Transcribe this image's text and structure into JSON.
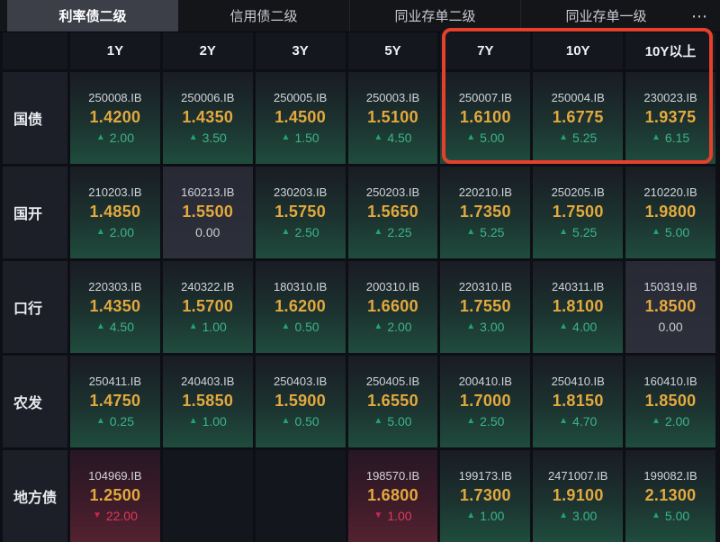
{
  "tab_bar": {
    "tabs": [
      {
        "label": "利率债二级",
        "active": true
      },
      {
        "label": "信用债二级",
        "active": false
      },
      {
        "label": "同业存单二级",
        "active": false
      },
      {
        "label": "同业存单一级",
        "active": false
      }
    ],
    "more_icon_glyph": "⋯"
  },
  "table": {
    "columns": [
      "1Y",
      "2Y",
      "3Y",
      "5Y",
      "7Y",
      "10Y",
      "10Y以上"
    ],
    "rows": [
      {
        "label": "国债",
        "cells": [
          {
            "code": "250008.IB",
            "rate": "1.4200",
            "change": "2.00",
            "dir": "up"
          },
          {
            "code": "250006.IB",
            "rate": "1.4350",
            "change": "3.50",
            "dir": "up"
          },
          {
            "code": "250005.IB",
            "rate": "1.4500",
            "change": "1.50",
            "dir": "up"
          },
          {
            "code": "250003.IB",
            "rate": "1.5100",
            "change": "4.50",
            "dir": "up"
          },
          {
            "code": "250007.IB",
            "rate": "1.6100",
            "change": "5.00",
            "dir": "up"
          },
          {
            "code": "250004.IB",
            "rate": "1.6775",
            "change": "5.25",
            "dir": "up"
          },
          {
            "code": "230023.IB",
            "rate": "1.9375",
            "change": "6.15",
            "dir": "up"
          }
        ]
      },
      {
        "label": "国开",
        "cells": [
          {
            "code": "210203.IB",
            "rate": "1.4850",
            "change": "2.00",
            "dir": "up"
          },
          {
            "code": "160213.IB",
            "rate": "1.5500",
            "change": "0.00",
            "dir": "flat"
          },
          {
            "code": "230203.IB",
            "rate": "1.5750",
            "change": "2.50",
            "dir": "up"
          },
          {
            "code": "250203.IB",
            "rate": "1.5650",
            "change": "2.25",
            "dir": "up"
          },
          {
            "code": "220210.IB",
            "rate": "1.7350",
            "change": "5.25",
            "dir": "up"
          },
          {
            "code": "250205.IB",
            "rate": "1.7500",
            "change": "5.25",
            "dir": "up"
          },
          {
            "code": "210220.IB",
            "rate": "1.9800",
            "change": "5.00",
            "dir": "up"
          }
        ]
      },
      {
        "label": "口行",
        "cells": [
          {
            "code": "220303.IB",
            "rate": "1.4350",
            "change": "4.50",
            "dir": "up"
          },
          {
            "code": "240322.IB",
            "rate": "1.5700",
            "change": "1.00",
            "dir": "up"
          },
          {
            "code": "180310.IB",
            "rate": "1.6200",
            "change": "0.50",
            "dir": "up"
          },
          {
            "code": "200310.IB",
            "rate": "1.6600",
            "change": "2.00",
            "dir": "up"
          },
          {
            "code": "220310.IB",
            "rate": "1.7550",
            "change": "3.00",
            "dir": "up"
          },
          {
            "code": "240311.IB",
            "rate": "1.8100",
            "change": "4.00",
            "dir": "up"
          },
          {
            "code": "150319.IB",
            "rate": "1.8500",
            "change": "0.00",
            "dir": "flat"
          }
        ]
      },
      {
        "label": "农发",
        "cells": [
          {
            "code": "250411.IB",
            "rate": "1.4750",
            "change": "0.25",
            "dir": "up"
          },
          {
            "code": "240403.IB",
            "rate": "1.5850",
            "change": "1.00",
            "dir": "up"
          },
          {
            "code": "250403.IB",
            "rate": "1.5900",
            "change": "0.50",
            "dir": "up"
          },
          {
            "code": "250405.IB",
            "rate": "1.6550",
            "change": "5.00",
            "dir": "up"
          },
          {
            "code": "200410.IB",
            "rate": "1.7000",
            "change": "2.50",
            "dir": "up"
          },
          {
            "code": "250410.IB",
            "rate": "1.8150",
            "change": "4.70",
            "dir": "up"
          },
          {
            "code": "160410.IB",
            "rate": "1.8500",
            "change": "2.00",
            "dir": "up"
          }
        ]
      },
      {
        "label": "地方债",
        "cells": [
          {
            "code": "104969.IB",
            "rate": "1.2500",
            "change": "22.00",
            "dir": "down"
          },
          {
            "dir": "empty"
          },
          {
            "dir": "empty"
          },
          {
            "code": "198570.IB",
            "rate": "1.6800",
            "change": "1.00",
            "dir": "down"
          },
          {
            "code": "199173.IB",
            "rate": "1.7300",
            "change": "1.00",
            "dir": "up"
          },
          {
            "code": "2471007.IB",
            "rate": "1.9100",
            "change": "3.00",
            "dir": "up"
          },
          {
            "code": "199082.IB",
            "rate": "2.1300",
            "change": "5.00",
            "dir": "up"
          }
        ]
      }
    ]
  },
  "highlight": {
    "columns": [
      "7Y",
      "10Y",
      "10Y以上"
    ],
    "row": "国债",
    "border_color": "#e5402b"
  },
  "colors": {
    "rate_yellow": "#e3a93e",
    "up_green": "#3cb586",
    "down_red": "#dd3a5e",
    "flat_gray": "#ccced6",
    "active_tab_bg": "#3c3f48",
    "page_bg": "#0d0f14"
  },
  "glyphs": {
    "up_triangle": "▲",
    "down_triangle": "▼"
  }
}
